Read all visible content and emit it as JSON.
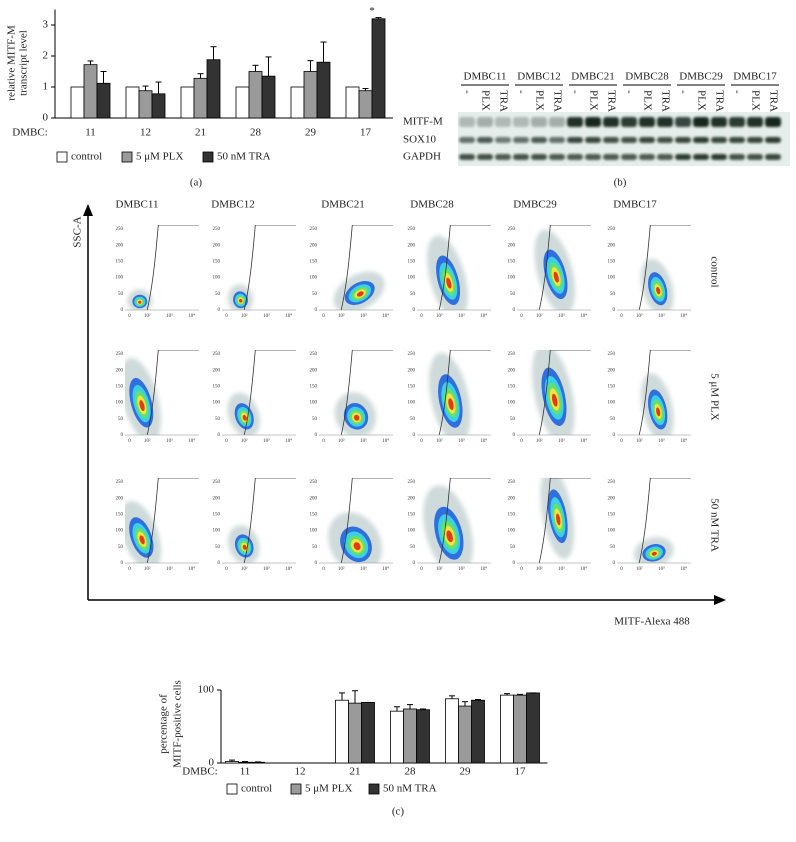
{
  "panel_labels": [
    "(a)",
    "(b)",
    "(c)"
  ],
  "chart_data": [
    {
      "type": "bar",
      "ylabel": [
        "relative MITF-M",
        "transcript level"
      ],
      "xlabel": "DMBC:",
      "categories": [
        "11",
        "12",
        "21",
        "28",
        "29",
        "17"
      ],
      "series": [
        {
          "name": "control",
          "color": "#ffffff",
          "values": [
            1,
            1,
            1,
            1,
            1,
            1
          ]
        },
        {
          "name": "5 μM PLX",
          "color": "#9a9a9a",
          "values": [
            1.72,
            0.88,
            1.28,
            1.5,
            1.5,
            0.88
          ],
          "errors": [
            0.12,
            0.15,
            0.15,
            0.2,
            0.35,
            0.07
          ]
        },
        {
          "name": "50 nM TRA",
          "color": "#333333",
          "values": [
            1.12,
            0.78,
            1.88,
            1.35,
            1.8,
            3.2
          ],
          "errors": [
            0.38,
            0.38,
            0.42,
            0.62,
            0.65,
            0.04
          ]
        }
      ],
      "annotation": "*",
      "ylim": [
        0,
        3.5
      ],
      "yticks": [
        0,
        1,
        2,
        3
      ]
    },
    {
      "type": "bar",
      "ylabel": [
        "percentage of",
        "MITF-positive cells"
      ],
      "xlabel": "DMBC:",
      "categories": [
        "11",
        "12",
        "21",
        "28",
        "29",
        "17"
      ],
      "series": [
        {
          "name": "control",
          "color": "#ffffff",
          "values": [
            2,
            null,
            86,
            71,
            88,
            93
          ],
          "errors": [
            2,
            null,
            10,
            6,
            4,
            2
          ]
        },
        {
          "name": "5 μM PLX",
          "color": "#9a9a9a",
          "values": [
            1,
            null,
            82,
            74,
            78,
            93
          ],
          "errors": [
            1,
            null,
            17,
            6,
            6,
            1
          ]
        },
        {
          "name": "50 nM TRA",
          "color": "#333333",
          "values": [
            1,
            null,
            83,
            73,
            86,
            96
          ],
          "errors": [
            0.5,
            null,
            0,
            1,
            1,
            0
          ]
        }
      ],
      "ylim": [
        0,
        100
      ],
      "yticks": [
        0,
        100
      ]
    }
  ],
  "blot": {
    "groups": [
      "DMBC11",
      "DMBC12",
      "DMBC21",
      "DMBC28",
      "DMBC29",
      "DMBC17"
    ],
    "lanes": [
      "-",
      "PLX",
      "TRA"
    ],
    "rows": [
      "MITF-M",
      "SOX10",
      "GAPDH"
    ]
  },
  "flow": {
    "columns": [
      "DMBC11",
      "DMBC12",
      "DMBC21",
      "DMBC28",
      "DMBC29",
      "DMBC17"
    ],
    "rows": [
      "control",
      "5 μM PLX",
      "50 nM TRA"
    ],
    "ylabel": "SSC-A",
    "xlabel": "MITF-Alexa 488",
    "yticks": [
      0,
      50,
      100,
      150,
      200,
      250
    ],
    "xticks": [
      "0",
      "10²",
      "10³",
      "10⁴"
    ]
  }
}
